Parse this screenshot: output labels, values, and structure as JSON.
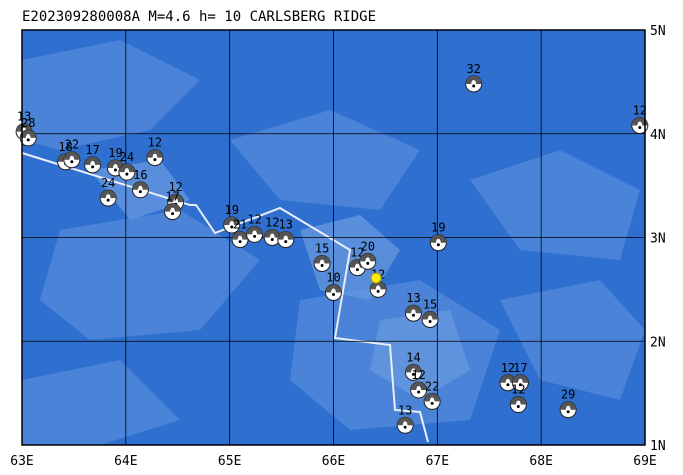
{
  "header": {
    "title": "E202309280008A M=4.6 h= 10 CARLSBERG RIDGE"
  },
  "map": {
    "lon_range": [
      63,
      69
    ],
    "lat_range": [
      1,
      5
    ],
    "lon_ticks": [
      {
        "value": 63,
        "label": "63E"
      },
      {
        "value": 64,
        "label": "64E"
      },
      {
        "value": 65,
        "label": "65E"
      },
      {
        "value": 66,
        "label": "66E"
      },
      {
        "value": 67,
        "label": "67E"
      },
      {
        "value": 68,
        "label": "68E"
      },
      {
        "value": 69,
        "label": "69E"
      }
    ],
    "lat_ticks": [
      {
        "value": 1,
        "label": "1N"
      },
      {
        "value": 2,
        "label": "2N"
      },
      {
        "value": 3,
        "label": "3N"
      },
      {
        "value": 4,
        "label": "4N"
      },
      {
        "value": 5,
        "label": "5N"
      }
    ],
    "main_event": {
      "lon": 66.41,
      "lat": 2.61
    },
    "events": [
      {
        "label": "32",
        "lon": 67.35,
        "lat": 4.48
      },
      {
        "label": "12",
        "lon": 68.95,
        "lat": 4.08
      },
      {
        "label": "13",
        "lon": 63.02,
        "lat": 4.02
      },
      {
        "label": "28",
        "lon": 63.06,
        "lat": 3.96
      },
      {
        "label": "18",
        "lon": 63.42,
        "lat": 3.73
      },
      {
        "label": "22",
        "lon": 63.48,
        "lat": 3.75
      },
      {
        "label": "17",
        "lon": 63.68,
        "lat": 3.7
      },
      {
        "label": "19",
        "lon": 63.9,
        "lat": 3.67
      },
      {
        "label": "24",
        "lon": 64.01,
        "lat": 3.63
      },
      {
        "label": "12",
        "lon": 64.28,
        "lat": 3.77
      },
      {
        "label": "24",
        "lon": 63.83,
        "lat": 3.38
      },
      {
        "label": "16",
        "lon": 64.14,
        "lat": 3.46
      },
      {
        "label": "12",
        "lon": 64.48,
        "lat": 3.34
      },
      {
        "label": "17",
        "lon": 64.45,
        "lat": 3.25
      },
      {
        "label": "19",
        "lon": 65.02,
        "lat": 3.12
      },
      {
        "label": "21",
        "lon": 65.1,
        "lat": 2.98
      },
      {
        "label": "12",
        "lon": 65.24,
        "lat": 3.03
      },
      {
        "label": "12",
        "lon": 65.41,
        "lat": 3.0
      },
      {
        "label": "13",
        "lon": 65.54,
        "lat": 2.98
      },
      {
        "label": "15",
        "lon": 65.89,
        "lat": 2.75
      },
      {
        "label": "10",
        "lon": 66.0,
        "lat": 2.47
      },
      {
        "label": "12",
        "lon": 66.23,
        "lat": 2.71
      },
      {
        "label": "20",
        "lon": 66.33,
        "lat": 2.77
      },
      {
        "label": "12",
        "lon": 66.43,
        "lat": 2.5
      },
      {
        "label": "19",
        "lon": 67.01,
        "lat": 2.95
      },
      {
        "label": "13",
        "lon": 66.77,
        "lat": 2.27
      },
      {
        "label": "15",
        "lon": 66.93,
        "lat": 2.21
      },
      {
        "label": "14",
        "lon": 66.77,
        "lat": 1.7
      },
      {
        "label": "12",
        "lon": 66.82,
        "lat": 1.53
      },
      {
        "label": "22",
        "lon": 66.95,
        "lat": 1.42
      },
      {
        "label": "13",
        "lon": 66.69,
        "lat": 1.19
      },
      {
        "label": "12",
        "lon": 67.68,
        "lat": 1.6
      },
      {
        "label": "17",
        "lon": 67.8,
        "lat": 1.6
      },
      {
        "label": "12",
        "lon": 67.78,
        "lat": 1.39
      },
      {
        "label": "29",
        "lon": 68.26,
        "lat": 1.34
      }
    ]
  }
}
